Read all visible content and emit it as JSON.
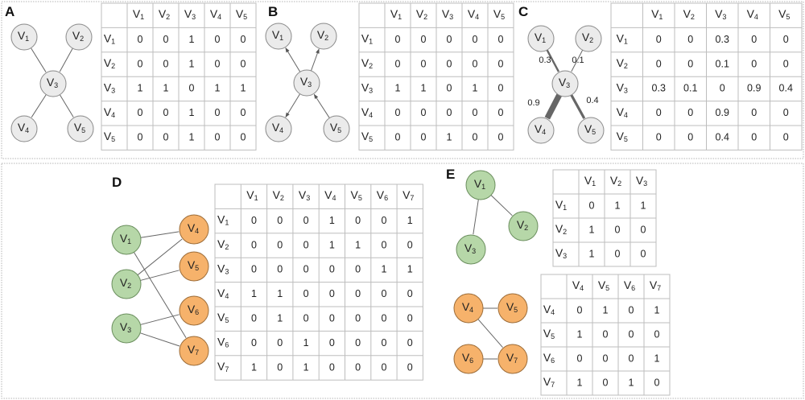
{
  "colors": {
    "gray_node": "#ebebeb",
    "green_node": "#b6d7a8",
    "orange_node": "#f6b26b",
    "edge": "#666666"
  },
  "panels": [
    {
      "label": "A",
      "directed": false,
      "nodes": [
        {
          "id": "V1",
          "color": "gray"
        },
        {
          "id": "V2",
          "color": "gray"
        },
        {
          "id": "V3",
          "color": "gray"
        },
        {
          "id": "V4",
          "color": "gray"
        },
        {
          "id": "V5",
          "color": "gray"
        }
      ],
      "edges": [
        {
          "from": "V1",
          "to": "V3"
        },
        {
          "from": "V2",
          "to": "V3"
        },
        {
          "from": "V3",
          "to": "V4"
        },
        {
          "from": "V3",
          "to": "V5"
        }
      ],
      "matrices": [
        {
          "vertices": [
            "V1",
            "V2",
            "V3",
            "V4",
            "V5"
          ],
          "values": [
            [
              "0",
              "0",
              "1",
              "0",
              "0"
            ],
            [
              "0",
              "0",
              "1",
              "0",
              "0"
            ],
            [
              "1",
              "1",
              "0",
              "1",
              "1"
            ],
            [
              "0",
              "0",
              "1",
              "0",
              "0"
            ],
            [
              "0",
              "0",
              "1",
              "0",
              "0"
            ]
          ]
        }
      ]
    },
    {
      "label": "B",
      "directed": true,
      "nodes": [
        {
          "id": "V1",
          "color": "gray"
        },
        {
          "id": "V2",
          "color": "gray"
        },
        {
          "id": "V3",
          "color": "gray"
        },
        {
          "id": "V4",
          "color": "gray"
        },
        {
          "id": "V5",
          "color": "gray"
        }
      ],
      "edges": [
        {
          "from": "V3",
          "to": "V1"
        },
        {
          "from": "V3",
          "to": "V2"
        },
        {
          "from": "V3",
          "to": "V4"
        },
        {
          "from": "V5",
          "to": "V3"
        }
      ],
      "matrices": [
        {
          "vertices": [
            "V1",
            "V2",
            "V3",
            "V4",
            "V5"
          ],
          "values": [
            [
              "0",
              "0",
              "0",
              "0",
              "0"
            ],
            [
              "0",
              "0",
              "0",
              "0",
              "0"
            ],
            [
              "1",
              "1",
              "0",
              "1",
              "0"
            ],
            [
              "0",
              "0",
              "0",
              "0",
              "0"
            ],
            [
              "0",
              "0",
              "1",
              "0",
              "0"
            ]
          ]
        }
      ]
    },
    {
      "label": "C",
      "directed": false,
      "nodes": [
        {
          "id": "V1",
          "color": "gray"
        },
        {
          "id": "V2",
          "color": "gray"
        },
        {
          "id": "V3",
          "color": "gray"
        },
        {
          "id": "V4",
          "color": "gray"
        },
        {
          "id": "V5",
          "color": "gray"
        }
      ],
      "edges": [
        {
          "from": "V1",
          "to": "V3",
          "weight": "0.3"
        },
        {
          "from": "V2",
          "to": "V3",
          "weight": "0.1"
        },
        {
          "from": "V3",
          "to": "V4",
          "weight": "0.9"
        },
        {
          "from": "V3",
          "to": "V5",
          "weight": "0.4"
        }
      ],
      "matrices": [
        {
          "vertices": [
            "V1",
            "V2",
            "V3",
            "V4",
            "V5"
          ],
          "values": [
            [
              "0",
              "0",
              "0.3",
              "0",
              "0"
            ],
            [
              "0",
              "0",
              "0.1",
              "0",
              "0"
            ],
            [
              "0.3",
              "0.1",
              "0",
              "0.9",
              "0.4"
            ],
            [
              "0",
              "0",
              "0.9",
              "0",
              "0"
            ],
            [
              "0",
              "0",
              "0.4",
              "0",
              "0"
            ]
          ]
        }
      ]
    },
    {
      "label": "D",
      "directed": false,
      "nodes": [
        {
          "id": "V1",
          "color": "green"
        },
        {
          "id": "V2",
          "color": "green"
        },
        {
          "id": "V3",
          "color": "green"
        },
        {
          "id": "V4",
          "color": "orange"
        },
        {
          "id": "V5",
          "color": "orange"
        },
        {
          "id": "V6",
          "color": "orange"
        },
        {
          "id": "V7",
          "color": "orange"
        }
      ],
      "edges": [
        {
          "from": "V1",
          "to": "V4"
        },
        {
          "from": "V1",
          "to": "V7"
        },
        {
          "from": "V2",
          "to": "V4"
        },
        {
          "from": "V2",
          "to": "V5"
        },
        {
          "from": "V3",
          "to": "V6"
        },
        {
          "from": "V3",
          "to": "V7"
        }
      ],
      "matrices": [
        {
          "vertices": [
            "V1",
            "V2",
            "V3",
            "V4",
            "V5",
            "V6",
            "V7"
          ],
          "values": [
            [
              "0",
              "0",
              "0",
              "1",
              "0",
              "0",
              "1"
            ],
            [
              "0",
              "0",
              "0",
              "1",
              "1",
              "0",
              "0"
            ],
            [
              "0",
              "0",
              "0",
              "0",
              "0",
              "1",
              "1"
            ],
            [
              "1",
              "1",
              "0",
              "0",
              "0",
              "0",
              "0"
            ],
            [
              "0",
              "1",
              "0",
              "0",
              "0",
              "0",
              "0"
            ],
            [
              "0",
              "0",
              "1",
              "0",
              "0",
              "0",
              "0"
            ],
            [
              "1",
              "0",
              "1",
              "0",
              "0",
              "0",
              "0"
            ]
          ]
        }
      ]
    },
    {
      "label": "E",
      "directed": false,
      "nodes": [
        {
          "id": "V1",
          "color": "green"
        },
        {
          "id": "V2",
          "color": "green"
        },
        {
          "id": "V3",
          "color": "green"
        },
        {
          "id": "V4",
          "color": "orange"
        },
        {
          "id": "V5",
          "color": "orange"
        },
        {
          "id": "V6",
          "color": "orange"
        },
        {
          "id": "V7",
          "color": "orange"
        }
      ],
      "edges": [
        {
          "from": "V1",
          "to": "V2"
        },
        {
          "from": "V1",
          "to": "V3"
        },
        {
          "from": "V4",
          "to": "V5"
        },
        {
          "from": "V4",
          "to": "V7"
        },
        {
          "from": "V6",
          "to": "V7"
        }
      ],
      "matrices": [
        {
          "vertices": [
            "V1",
            "V2",
            "V3"
          ],
          "values": [
            [
              "0",
              "1",
              "1"
            ],
            [
              "1",
              "0",
              "0"
            ],
            [
              "1",
              "0",
              "0"
            ]
          ]
        },
        {
          "vertices": [
            "V4",
            "V5",
            "V6",
            "V7"
          ],
          "values": [
            [
              "0",
              "1",
              "0",
              "1"
            ],
            [
              "1",
              "0",
              "0",
              "0"
            ],
            [
              "0",
              "0",
              "0",
              "1"
            ],
            [
              "1",
              "0",
              "1",
              "0"
            ]
          ]
        }
      ]
    }
  ]
}
